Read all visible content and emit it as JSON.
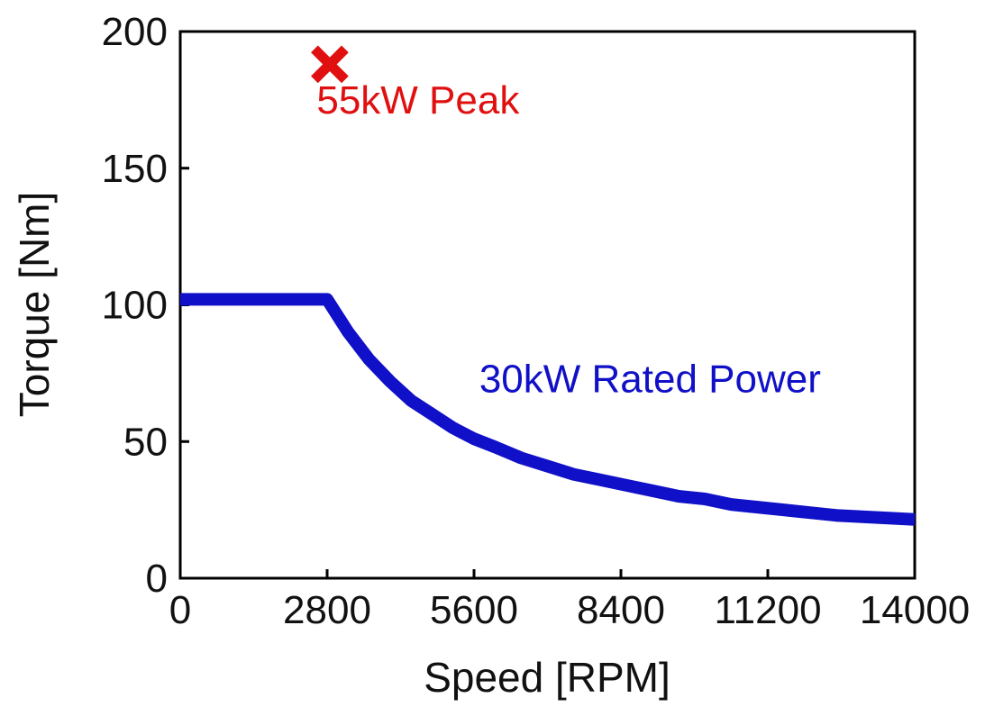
{
  "chart_data": {
    "type": "line",
    "title": "",
    "xlabel": "Speed [RPM]",
    "ylabel": "Torque [Nm]",
    "xlim": [
      0,
      14000
    ],
    "ylim": [
      0,
      200
    ],
    "xticks": [
      0,
      2800,
      5600,
      8400,
      11200,
      14000
    ],
    "yticks": [
      0,
      50,
      100,
      150,
      200
    ],
    "xtick_labels": [
      "0",
      "2800",
      "5600",
      "8400",
      "11200",
      "14000"
    ],
    "ytick_labels": [
      "0",
      "50",
      "100",
      "150",
      "200"
    ],
    "grid": false,
    "series": [
      {
        "name": "30kW Rated Power",
        "color": "#1010c8",
        "x": [
          0,
          2800,
          3200,
          3600,
          4000,
          4400,
          4800,
          5200,
          5600,
          6000,
          6500,
          7000,
          7500,
          8000,
          8500,
          9000,
          9500,
          10000,
          10500,
          11000,
          11500,
          12000,
          12500,
          13000,
          13500,
          14000
        ],
        "y": [
          102,
          102,
          90,
          80,
          72,
          65,
          60,
          55,
          51,
          48,
          44,
          41,
          38,
          36,
          34,
          32,
          30,
          29,
          27,
          26,
          25,
          24,
          23,
          22.5,
          22,
          21.5
        ]
      }
    ],
    "markers": [
      {
        "name": "55kW Peak",
        "marker": "x",
        "color": "#e01010",
        "x": 2850,
        "y": 188
      }
    ],
    "annotations": [
      {
        "text": "55kW Peak",
        "color": "#e01010",
        "x": 2600,
        "y": 170
      },
      {
        "text": "30kW Rated Power",
        "color": "#1010c8",
        "x": 5700,
        "y": 68
      }
    ]
  }
}
